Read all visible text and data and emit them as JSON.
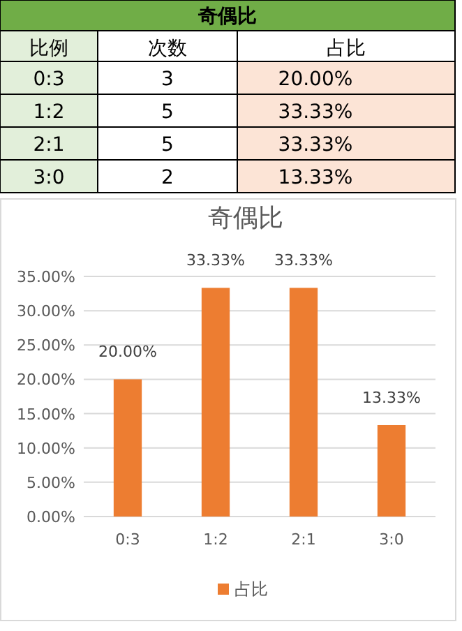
{
  "chart_data": [
    {
      "type": "other",
      "title": "奇偶比",
      "annotations": [
        "比例",
        "次数",
        "占比",
        "0:3",
        "3",
        "20.00%",
        "1:2",
        "5",
        "33.33%",
        "2:1",
        "5",
        "33.33%",
        "3:0",
        "2",
        "13.33%"
      ]
    },
    {
      "type": "bar",
      "title": "奇偶比",
      "categories": [
        "0:3",
        "1:2",
        "2:1",
        "3:0"
      ],
      "series": [
        {
          "name": "占比",
          "color": "#ed7d31",
          "values": [
            20,
            33.33,
            33.33,
            13.33
          ],
          "value_labels": [
            "20.00%",
            "33.33%",
            "33.33%",
            "13.33%"
          ]
        }
      ],
      "ylim": [
        0,
        35
      ],
      "yticks": [
        {
          "value": 0,
          "label": "0.00%"
        },
        {
          "value": 5,
          "label": "5.00%"
        },
        {
          "value": 10,
          "label": "10.00%"
        },
        {
          "value": 15,
          "label": "15.00%"
        },
        {
          "value": 20,
          "label": "20.00%"
        },
        {
          "value": 25,
          "label": "25.00%"
        },
        {
          "value": 30,
          "label": "30.00%"
        },
        {
          "value": 35,
          "label": "35.00%"
        }
      ],
      "grid": "y",
      "legend": "bottom"
    }
  ]
}
